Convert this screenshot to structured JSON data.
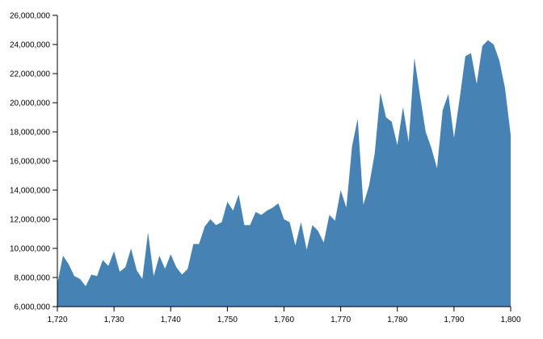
{
  "chart_data": {
    "type": "area",
    "color": "#4682b4",
    "x": [
      1720,
      1721,
      1722,
      1723,
      1724,
      1725,
      1726,
      1727,
      1728,
      1729,
      1730,
      1731,
      1732,
      1733,
      1734,
      1735,
      1736,
      1737,
      1738,
      1739,
      1740,
      1741,
      1742,
      1743,
      1744,
      1745,
      1746,
      1747,
      1748,
      1749,
      1750,
      1751,
      1752,
      1753,
      1754,
      1755,
      1756,
      1757,
      1758,
      1759,
      1760,
      1761,
      1762,
      1763,
      1764,
      1765,
      1766,
      1767,
      1768,
      1769,
      1770,
      1771,
      1772,
      1773,
      1774,
      1775,
      1776,
      1777,
      1778,
      1779,
      1780,
      1781,
      1782,
      1783,
      1784,
      1785,
      1786,
      1787,
      1788,
      1789,
      1790,
      1791,
      1792,
      1793,
      1794,
      1795,
      1796,
      1797,
      1798,
      1799,
      1800
    ],
    "values": [
      7600000,
      9500000,
      8900000,
      8100000,
      7900000,
      7400000,
      8200000,
      8100000,
      9200000,
      8800000,
      9800000,
      8400000,
      8700000,
      10000000,
      8500000,
      7900000,
      11100000,
      8100000,
      9500000,
      8600000,
      9600000,
      8700000,
      8200000,
      8600000,
      10300000,
      10300000,
      11500000,
      12000000,
      11600000,
      11800000,
      13200000,
      12600000,
      13700000,
      11600000,
      11600000,
      12500000,
      12300000,
      12600000,
      12800000,
      13100000,
      12000000,
      11800000,
      10200000,
      11800000,
      9900000,
      11600000,
      11200000,
      10400000,
      12300000,
      11900000,
      14000000,
      12800000,
      17000000,
      18900000,
      13000000,
      14300000,
      16500000,
      20700000,
      19000000,
      18700000,
      17100000,
      19700000,
      17300000,
      23100000,
      20500000,
      18000000,
      16900000,
      15500000,
      19500000,
      20600000,
      17600000,
      20300000,
      23200000,
      23400000,
      21300000,
      23900000,
      24300000,
      24000000,
      22900000,
      21000000,
      17800000
    ],
    "xlim": [
      1720,
      1800
    ],
    "xticks": [
      {
        "value": 1720,
        "label": "1,720"
      },
      {
        "value": 1730,
        "label": "1,730"
      },
      {
        "value": 1740,
        "label": "1,740"
      },
      {
        "value": 1750,
        "label": "1,750"
      },
      {
        "value": 1760,
        "label": "1,760"
      },
      {
        "value": 1770,
        "label": "1,770"
      },
      {
        "value": 1780,
        "label": "1,780"
      },
      {
        "value": 1790,
        "label": "1,790"
      },
      {
        "value": 1800,
        "label": "1,800"
      }
    ],
    "ylim": [
      6000000,
      26000000
    ],
    "yticks": [
      {
        "value": 6000000,
        "label": "6,000,000"
      },
      {
        "value": 8000000,
        "label": "8,000,000"
      },
      {
        "value": 10000000,
        "label": "10,000,000"
      },
      {
        "value": 12000000,
        "label": "12,000,000"
      },
      {
        "value": 14000000,
        "label": "14,000,000"
      },
      {
        "value": 16000000,
        "label": "16,000,000"
      },
      {
        "value": 18000000,
        "label": "18,000,000"
      },
      {
        "value": 20000000,
        "label": "20,000,000"
      },
      {
        "value": 22000000,
        "label": "22,000,000"
      },
      {
        "value": 24000000,
        "label": "24,000,000"
      },
      {
        "value": 26000000,
        "label": "26,000,000"
      }
    ]
  }
}
